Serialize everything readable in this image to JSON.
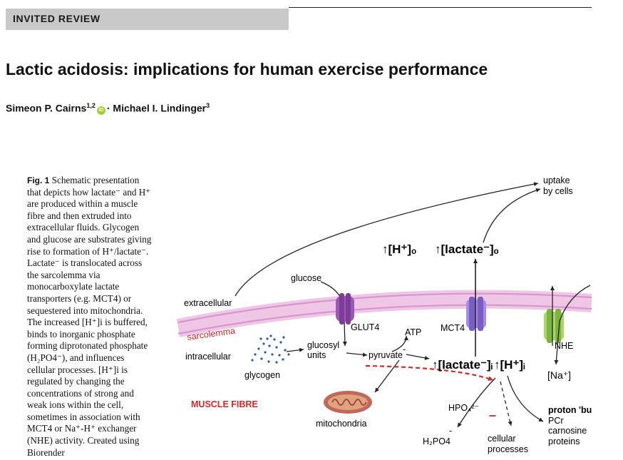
{
  "header": {
    "label": "INVITED REVIEW"
  },
  "article": {
    "title": "Lactic acidosis: implications for human exercise performance",
    "author1": {
      "name": "Simeon P. Cairns",
      "aff": "1,2"
    },
    "separator": "·",
    "author2": {
      "name": "Michael I. Lindinger",
      "aff": "3"
    },
    "orcid_icon": "orcid-icon",
    "orcid_text": "iD"
  },
  "caption": {
    "label": "Fig. 1",
    "text": "Schematic presentation that depicts how lactate⁻ and H⁺ are produced within a muscle fibre and then extruded into extracellular fluids. Glycogen and glucose are substrates giving rise to formation of H⁺/lactate⁻. Lactate⁻ is translocated across the sarcolemma via monocarboxylate lactate transporters (e.g. MCT4) or sequestered into mitochondria. The increased [H⁺]i is buffered, binds to inorganic phosphate forming diprotonated phosphate (H₂PO4⁻), and influences cellular processes. [H⁺]i is regulated by changing the concentrations of strong and weak ions within the cell, sometimes in association with MCT4 or Na⁺-H⁺ exchanger (NHE) activity. Created using Biorender"
  },
  "figure": {
    "uptake_1": "uptake",
    "uptake_2": "by cells",
    "h_out": "↑[H⁺]ₒ",
    "lactate_out": "↑[lactate⁻]ₒ",
    "glucose": "glucose",
    "extracellular": "extracellular",
    "sarcolemma": "sarcolemma",
    "intracellular": "intracellular",
    "glut4": "GLUT4",
    "atp": "ATP",
    "mct4": "MCT4",
    "nhe": "NHE",
    "glucosyl_1": "glucosyl",
    "glucosyl_2": "units",
    "pyruvate": "pyruvate",
    "pyruvate_minus": "-",
    "lactate_in": "↑[lactate⁻]ᵢ",
    "h_in": "↑[H⁺]ᵢ",
    "na": "[Na⁺]",
    "glycogen": "glycogen",
    "muscle_fibre": "MUSCLE FIBRE",
    "hpo4": "HPO₄²⁻",
    "mitochondria": "mitochondria",
    "h2po4": "H₂PO4",
    "h2po4_minus": "-",
    "minus_sign": "–",
    "cellular_1": "cellular",
    "cellular_2": "processes",
    "buffers_title": "proton 'buffers'",
    "buffer_1": "PCr",
    "buffer_2": "carnosine",
    "buffer_3": "proteins",
    "colors": {
      "membrane": "#e6b3dc",
      "label_red": "#d62828",
      "dashed_red": "#d62828",
      "glut4": "#9b59b6",
      "mct4": "#8e6bd4",
      "nhe": "#9ad14b",
      "glycogen": "#2e5a9e",
      "mitochondria": "#c0695a"
    }
  }
}
